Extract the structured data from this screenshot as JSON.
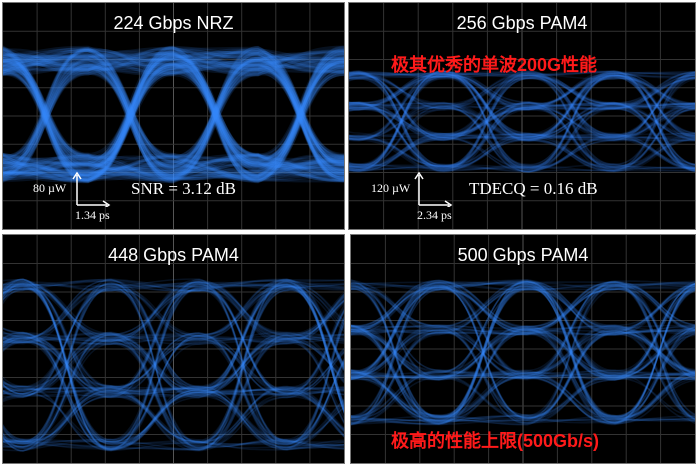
{
  "panels": [
    {
      "title": "224 Gbps NRZ",
      "y_scale": "80 µW",
      "x_scale": "1.34 ps",
      "metric": "SNR = 3.12 dB"
    },
    {
      "title": "256 Gbps PAM4",
      "caption": "极其优秀的单波200G性能",
      "y_scale": "120 µW",
      "x_scale": "2.34 ps",
      "metric": "TDECQ = 0.16 dB"
    },
    {
      "title": "448 Gbps PAM4"
    },
    {
      "title": "500 Gbps PAM4",
      "caption": "极高的性能上限(500Gb/s)"
    }
  ],
  "colors": {
    "trace": "#3a8cff",
    "caption": "#ff1a1a",
    "background": "#000000"
  }
}
